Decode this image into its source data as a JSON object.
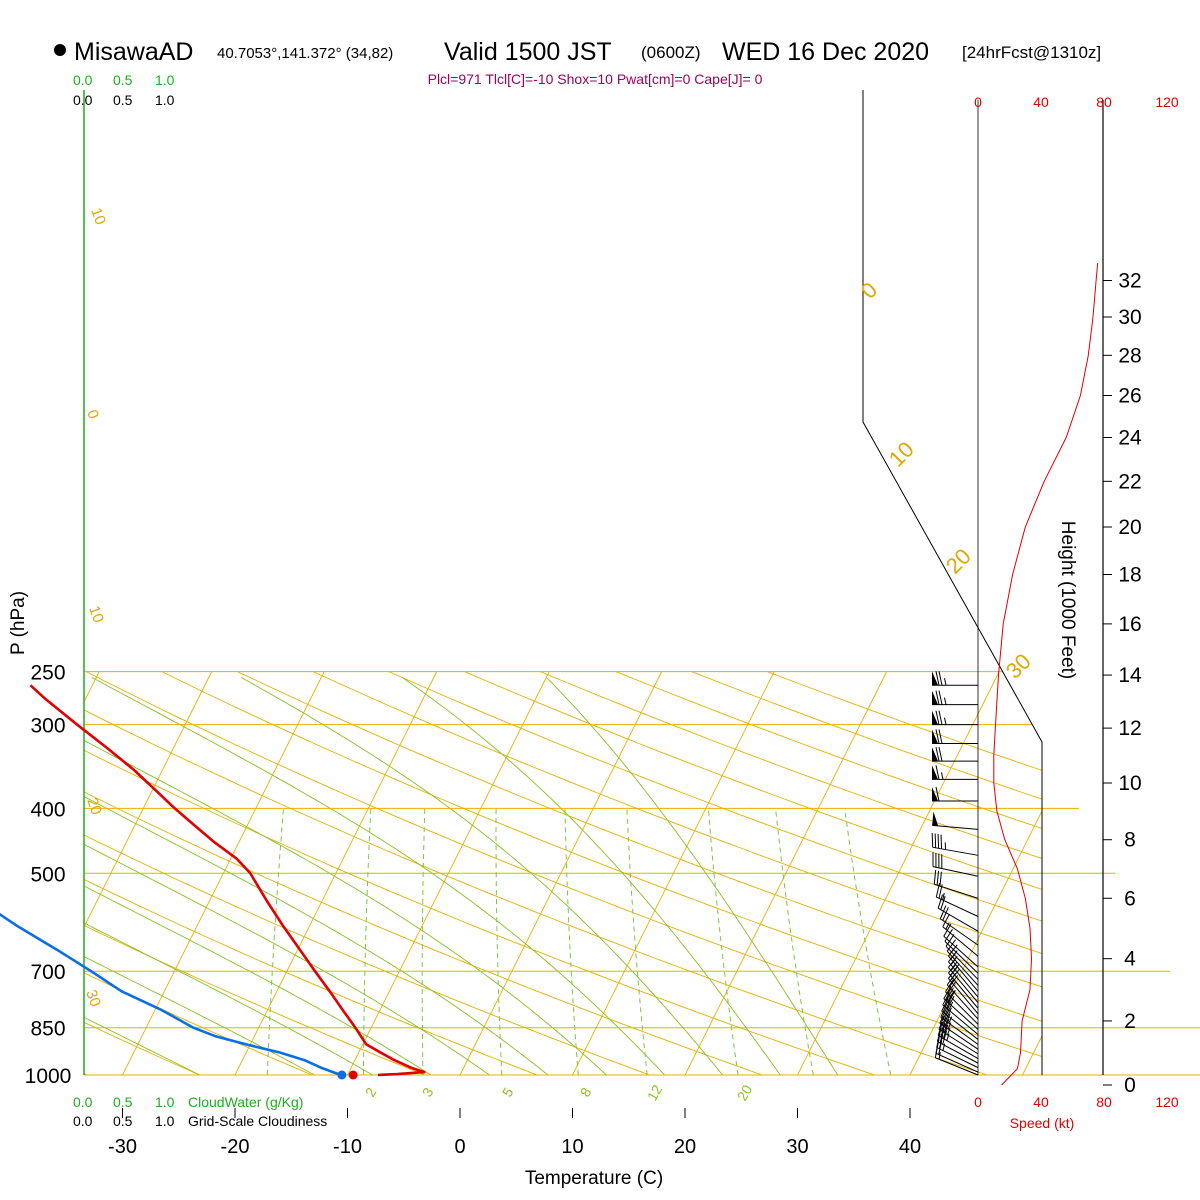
{
  "header": {
    "station": "MisawaAD",
    "location": "40.7053°,141.372° (34,82)",
    "valid_prefix": "Valid 1500 JST",
    "valid_utc": "(0600Z)",
    "valid_date": "WED 16 Dec 2020",
    "forecast": "[24hrFcst@1310z]",
    "indices": "Plcl=971 Tlcl[C]=-10 Shox=10 Pwat[cm]=0 Cape[J]= 0"
  },
  "labels": {
    "pressure_axis": "P (hPa)",
    "temperature_axis": "Temperature (C)",
    "height_axis": "Height (1000 Feet)",
    "speed_axis": "Speed (kt)",
    "cloud_water": "CloudWater (g/Kg)",
    "cloudiness": "Grid-Scale Cloudiness"
  },
  "scales": {
    "cloud_scale": [
      "0.0",
      "0.5",
      "1.0"
    ]
  },
  "colors": {
    "temperature": "#e00000",
    "dewpoint": "#0a6ee6",
    "isotherm": "#e8b000",
    "moist_adiabat": "#88c020",
    "mixing_ratio": "#7cc83c",
    "wind_speed": "#e00000",
    "indices": "#a0005a",
    "cloud_scale_green": "#1fae1f"
  },
  "chart_data": [
    {
      "type": "line",
      "title": "",
      "xlabel": "Temperature (C)",
      "ylabel": "P (hPa)",
      "y_scale": "log",
      "x_ticks": [
        -30,
        -20,
        -10,
        0,
        10,
        20,
        30,
        40
      ],
      "pressure_levels": [
        250,
        300,
        400,
        500,
        700,
        850,
        1000
      ],
      "dry_adiabat_labels": [
        "10",
        "0",
        "10",
        "20",
        "30"
      ],
      "isopleth_labels": [
        "0",
        "10",
        "20",
        "30"
      ],
      "mixing_ratio_labels": [
        "2",
        "3",
        "5",
        "8",
        "12",
        "20"
      ],
      "series": [
        {
          "name": "Temperature",
          "points": [
            [
              1000,
              -7.3
            ],
            [
              997,
              -5.6
            ],
            [
              990,
              -3.3
            ],
            [
              975,
              -4.7
            ],
            [
              950,
              -6.5
            ],
            [
              925,
              -8.1
            ],
            [
              900,
              -9.7
            ],
            [
              850,
              -11.4
            ],
            [
              800,
              -13.3
            ],
            [
              750,
              -15.3
            ],
            [
              700,
              -17.5
            ],
            [
              650,
              -19.8
            ],
            [
              600,
              -22.3
            ],
            [
              550,
              -24.9
            ],
            [
              500,
              -27.6
            ],
            [
              475,
              -29.5
            ],
            [
              450,
              -32.1
            ],
            [
              425,
              -34.6
            ],
            [
              400,
              -37.2
            ],
            [
              375,
              -39.8
            ],
            [
              350,
              -42.6
            ],
            [
              325,
              -45.9
            ],
            [
              300,
              -49.6
            ],
            [
              275,
              -53.5
            ],
            [
              262,
              -55.5
            ]
          ]
        },
        {
          "name": "Dewpoint",
          "points": [
            [
              1000,
              -10.6
            ],
            [
              975,
              -12.7
            ],
            [
              950,
              -14.5
            ],
            [
              925,
              -17.1
            ],
            [
              900,
              -20.4
            ],
            [
              875,
              -23.5
            ],
            [
              850,
              -25.8
            ],
            [
              800,
              -29.4
            ],
            [
              750,
              -33.8
            ],
            [
              700,
              -37.4
            ],
            [
              650,
              -41.4
            ],
            [
              600,
              -45.9
            ],
            [
              550,
              -50.4
            ],
            [
              500,
              -53.1
            ],
            [
              450,
              -55.0
            ],
            [
              400,
              -57.1
            ],
            [
              375,
              -59.5
            ],
            [
              350,
              -62.0
            ],
            [
              325,
              -64.4
            ],
            [
              300,
              -66.0
            ],
            [
              275,
              -67.6
            ],
            [
              262,
              -68.0
            ]
          ]
        }
      ],
      "surface_markers": {
        "temperature": -9.5,
        "dewpoint": -10.5
      }
    },
    {
      "type": "line",
      "title": "",
      "xlabel": "Speed (kt)",
      "ylabel": "Height (1000 Feet)",
      "x_ticks": [
        0,
        40,
        80,
        120
      ],
      "height_ticks": [
        0,
        2,
        4,
        6,
        8,
        10,
        12,
        14,
        16,
        18,
        20,
        22,
        24,
        26,
        28,
        30,
        32
      ],
      "series": [
        {
          "name": "Wind speed",
          "points": [
            [
              0,
              15
            ],
            [
              0.5,
              25
            ],
            [
              1,
              27
            ],
            [
              2,
              28
            ],
            [
              3,
              33
            ],
            [
              4,
              34
            ],
            [
              5,
              33
            ],
            [
              6,
              30
            ],
            [
              7,
              25
            ],
            [
              8,
              17
            ],
            [
              9,
              12
            ],
            [
              10,
              10
            ],
            [
              11,
              10
            ],
            [
              12,
              11
            ],
            [
              14,
              13
            ],
            [
              16,
              16
            ],
            [
              18,
              22
            ],
            [
              20,
              30
            ],
            [
              22,
              42
            ],
            [
              24,
              56
            ],
            [
              26,
              65
            ],
            [
              28,
              70
            ],
            [
              30,
              73
            ],
            [
              32,
              75
            ],
            [
              33,
              76
            ]
          ]
        }
      ]
    }
  ],
  "wind_barbs": {
    "units": "kt",
    "levels": [
      {
        "p": 262,
        "dir": 270,
        "spd": 75
      },
      {
        "p": 280,
        "dir": 270,
        "spd": 75
      },
      {
        "p": 300,
        "dir": 270,
        "spd": 73
      },
      {
        "p": 320,
        "dir": 270,
        "spd": 71
      },
      {
        "p": 340,
        "dir": 270,
        "spd": 69
      },
      {
        "p": 362,
        "dir": 270,
        "spd": 65
      },
      {
        "p": 390,
        "dir": 270,
        "spd": 60
      },
      {
        "p": 430,
        "dir": 275,
        "spd": 52
      },
      {
        "p": 470,
        "dir": 280,
        "spd": 45
      },
      {
        "p": 505,
        "dir": 282,
        "spd": 38
      },
      {
        "p": 545,
        "dir": 288,
        "spd": 32
      },
      {
        "p": 580,
        "dir": 295,
        "spd": 27
      },
      {
        "p": 610,
        "dir": 300,
        "spd": 22
      },
      {
        "p": 640,
        "dir": 305,
        "spd": 18
      },
      {
        "p": 665,
        "dir": 310,
        "spd": 15
      },
      {
        "p": 690,
        "dir": 312,
        "spd": 12
      },
      {
        "p": 705,
        "dir": 314,
        "spd": 12
      },
      {
        "p": 720,
        "dir": 316,
        "spd": 12
      },
      {
        "p": 735,
        "dir": 318,
        "spd": 13
      },
      {
        "p": 750,
        "dir": 320,
        "spd": 14
      },
      {
        "p": 765,
        "dir": 320,
        "spd": 15
      },
      {
        "p": 780,
        "dir": 320,
        "spd": 16
      },
      {
        "p": 795,
        "dir": 320,
        "spd": 18
      },
      {
        "p": 810,
        "dir": 320,
        "spd": 20
      },
      {
        "p": 825,
        "dir": 318,
        "spd": 22
      },
      {
        "p": 840,
        "dir": 315,
        "spd": 25
      },
      {
        "p": 855,
        "dir": 312,
        "spd": 28
      },
      {
        "p": 870,
        "dir": 310,
        "spd": 30
      },
      {
        "p": 885,
        "dir": 308,
        "spd": 32
      },
      {
        "p": 900,
        "dir": 306,
        "spd": 33
      },
      {
        "p": 915,
        "dir": 304,
        "spd": 34
      },
      {
        "p": 930,
        "dir": 302,
        "spd": 34
      },
      {
        "p": 945,
        "dir": 300,
        "spd": 33
      },
      {
        "p": 960,
        "dir": 298,
        "spd": 30
      },
      {
        "p": 975,
        "dir": 296,
        "spd": 27
      },
      {
        "p": 990,
        "dir": 294,
        "spd": 22
      },
      {
        "p": 1000,
        "dir": 292,
        "spd": 15
      }
    ]
  }
}
